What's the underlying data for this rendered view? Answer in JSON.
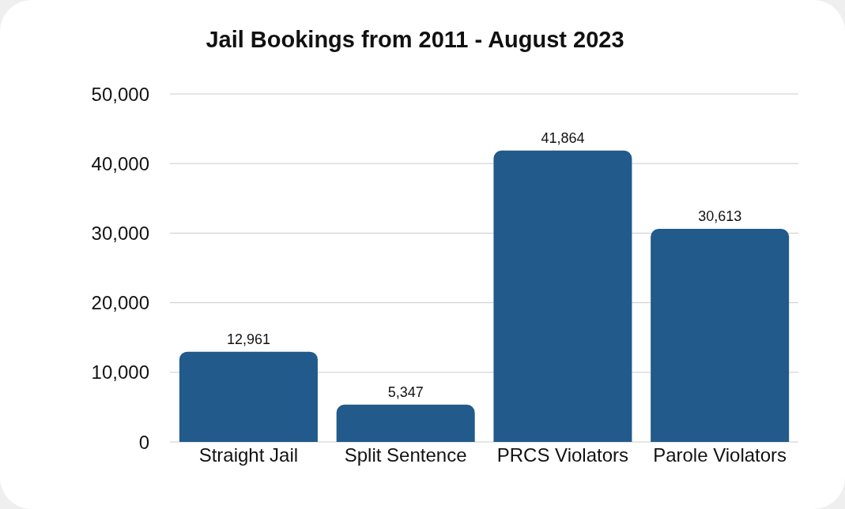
{
  "chart_data": {
    "type": "bar",
    "title": "Jail Bookings from 2011 - August 2023",
    "categories": [
      "Straight Jail",
      "Split Sentence",
      "PRCS Violators",
      "Parole Violators"
    ],
    "values": [
      12961,
      5347,
      41864,
      30613
    ],
    "color": "#215a8b",
    "ylim": [
      0,
      50000
    ],
    "yticks": [
      {
        "value": 0,
        "label": "0"
      },
      {
        "value": 10000,
        "label": "10,000"
      },
      {
        "value": 20000,
        "label": "20,000"
      },
      {
        "value": 30000,
        "label": "30,000"
      },
      {
        "value": 40000,
        "label": "40,000"
      },
      {
        "value": 50000,
        "label": "50,000"
      }
    ],
    "value_labels": [
      "12,961",
      "5,347",
      "41,864",
      "30,613"
    ],
    "grid": "y"
  }
}
